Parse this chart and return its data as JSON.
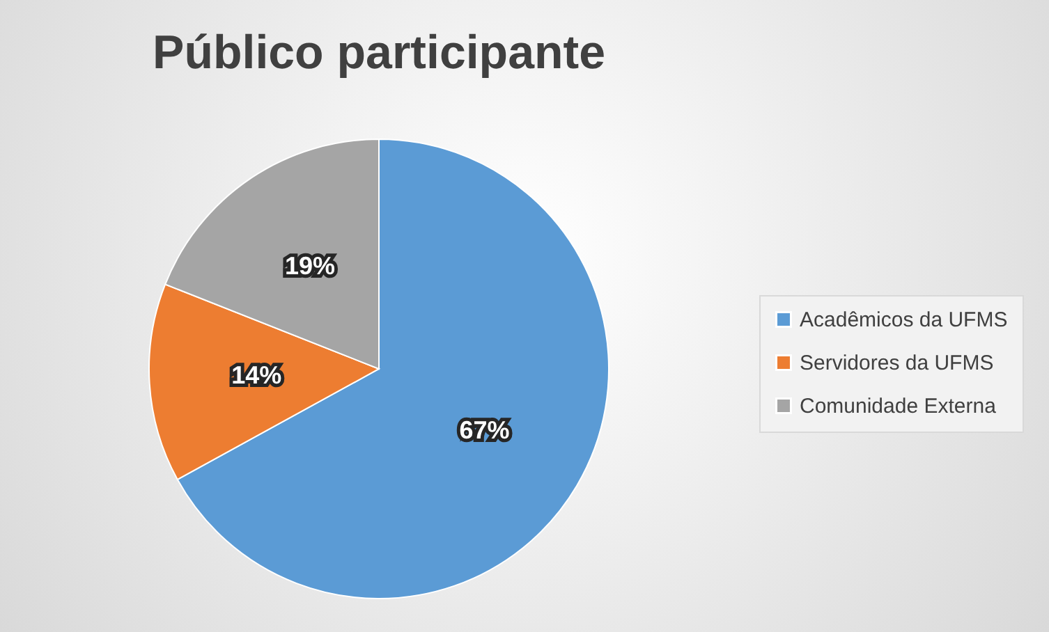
{
  "chart_data": {
    "type": "pie",
    "title": "Público participante",
    "categories": [
      "Acadêmicos da UFMS",
      "Servidores da UFMS",
      "Comunidade Externa"
    ],
    "values": [
      67,
      14,
      19
    ],
    "colors": [
      "#5b9bd5",
      "#ed7d31",
      "#a5a5a5"
    ],
    "value_labels": [
      "67%",
      "14%",
      "19%"
    ],
    "legend": "right"
  }
}
